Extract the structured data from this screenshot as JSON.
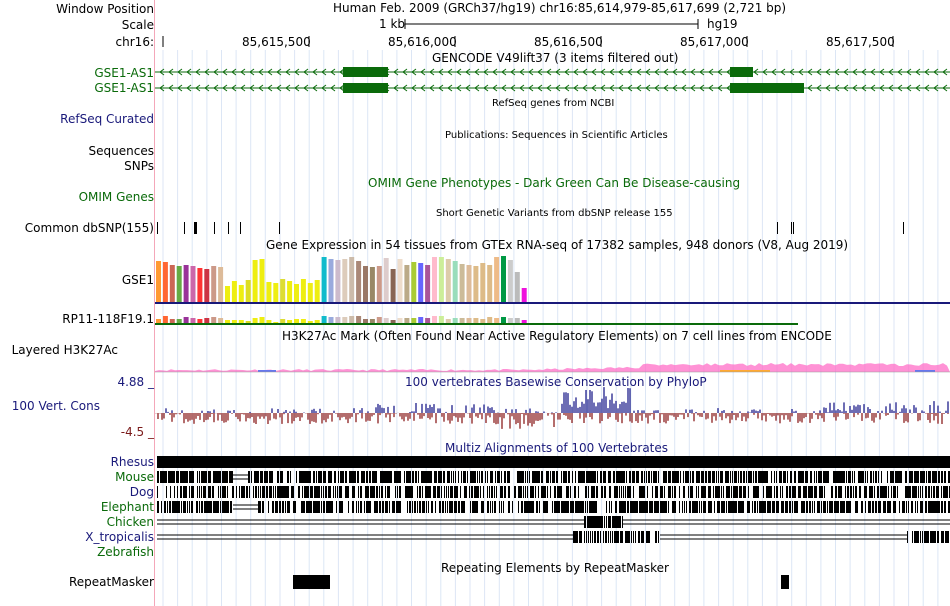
{
  "header": {
    "window_position_label": "Window Position",
    "window_position_value": "Human Feb. 2009 (GRCh37/hg19)   chr16:85,614,979-85,617,699 (2,721 bp)",
    "scale_label": "Scale",
    "scale_bar_text": "1 kb",
    "assembly": "hg19",
    "chrom_label": "chr16:",
    "ruler_ticks": [
      "85,615,500",
      "85,616,000",
      "85,616,500",
      "85,617,000",
      "85,617,500"
    ]
  },
  "tracks": {
    "gencode": {
      "title": "GENCODE V49lift37 (3 items filtered out)",
      "items": [
        {
          "label": "GSE1-AS1"
        },
        {
          "label": "GSE1-AS1"
        }
      ]
    },
    "refseq": {
      "title": "RefSeq genes from NCBI",
      "label": "RefSeq Curated"
    },
    "publications": {
      "title": "Publications: Sequences in Scientific Articles",
      "label1": "Sequences",
      "label2": "SNPs"
    },
    "omim": {
      "title": "OMIM Gene Phenotypes - Dark Green Can Be Disease-causing",
      "label": "OMIM Genes"
    },
    "dbsnp": {
      "title": "Short Genetic Variants from dbSNP release 155",
      "label": "Common dbSNP(155)"
    },
    "gtex": {
      "title": "Gene Expression in 54 tissues from GTEx RNA-seq of 17382 samples, 948 donors (V8, Aug 2019)",
      "gene1": "GSE1",
      "gene2": "RP11-118F19.1"
    },
    "h3k27ac": {
      "title": "H3K27Ac Mark (Often Found Near Active Regulatory Elements) on 7 cell lines from ENCODE",
      "label": "Layered H3K27Ac"
    },
    "phylop": {
      "title": "100 vertebrates Basewise Conservation by PhyloP",
      "label": "100 Vert. Cons",
      "max": "4.88 _",
      "min": "-4.5 _"
    },
    "multiz": {
      "title": "Multiz Alignments of 100 Vertebrates",
      "species": [
        {
          "name": "Rhesus",
          "color": "#19197a"
        },
        {
          "name": "Mouse",
          "color": "#0a6a0a"
        },
        {
          "name": "Dog",
          "color": "#19197a"
        },
        {
          "name": "Elephant",
          "color": "#0a6a0a"
        },
        {
          "name": "Chicken",
          "color": "#0a6a0a"
        },
        {
          "name": "X_tropicalis",
          "color": "#19197a"
        },
        {
          "name": "Zebrafish",
          "color": "#0a6a0a"
        }
      ]
    },
    "repeatmasker": {
      "title": "Repeating Elements by RepeatMasker",
      "label": "RepeatMasker"
    }
  },
  "colors": {
    "gene": "#0a6a0a",
    "navy": "#19197a",
    "maroon": "#7a1a1a",
    "phylop_pos": "#1e1e8c",
    "phylop_neg": "#8c1e1e",
    "h3k27ac": "#ff6ec7"
  }
}
